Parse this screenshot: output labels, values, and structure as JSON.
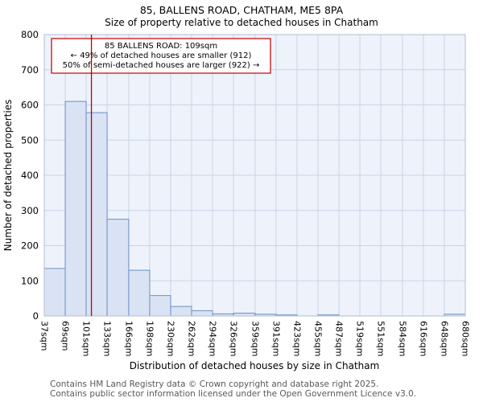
{
  "chart_data": {
    "type": "bar",
    "title": "85, BALLENS ROAD, CHATHAM, ME5 8PA",
    "subtitle": "Size of property relative to detached houses in Chatham",
    "xlabel": "Distribution of detached houses by size in Chatham",
    "ylabel": "Number of detached properties",
    "ylim": [
      0,
      800
    ],
    "ytick_step": 100,
    "bin_edges_sqm": [
      37,
      69,
      101,
      133,
      166,
      198,
      230,
      262,
      294,
      326,
      359,
      391,
      423,
      455,
      487,
      519,
      551,
      584,
      616,
      648,
      680
    ],
    "tick_labels": [
      "37sqm",
      "69sqm",
      "101sqm",
      "133sqm",
      "166sqm",
      "198sqm",
      "230sqm",
      "262sqm",
      "294sqm",
      "326sqm",
      "359sqm",
      "391sqm",
      "423sqm",
      "455sqm",
      "487sqm",
      "519sqm",
      "551sqm",
      "584sqm",
      "616sqm",
      "648sqm",
      "680sqm"
    ],
    "values": [
      135,
      610,
      578,
      275,
      130,
      58,
      27,
      15,
      6,
      8,
      5,
      3,
      0,
      3,
      0,
      0,
      0,
      0,
      0,
      5
    ],
    "marker": {
      "value_sqm": 109
    },
    "annotation": {
      "line1": "85 BALLENS ROAD: 109sqm",
      "line2": "← 49% of detached houses are smaller (912)",
      "line3": "50% of semi-detached houses are larger (922) →"
    },
    "colors": {
      "bar_fill": "#d9e3f4",
      "bar_border": "#6d8fc4",
      "grid": "#c9d4e8",
      "plot_bg": "#eef2fa",
      "plot_border": "#b3bdd2",
      "marker_line": "#c00000",
      "annotation_border": "#c00000"
    }
  },
  "footer": {
    "line1": "Contains HM Land Registry data © Crown copyright and database right 2025.",
    "line2": "Contains public sector information licensed under the Open Government Licence v3.0."
  }
}
